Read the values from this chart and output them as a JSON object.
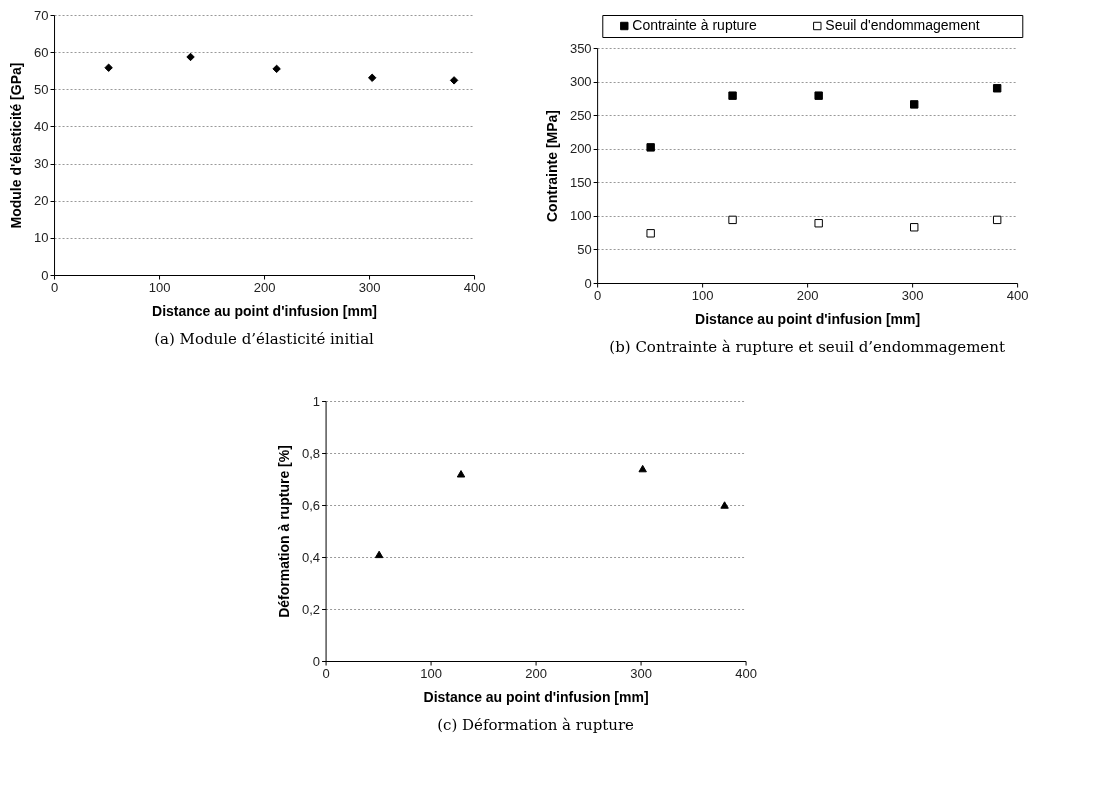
{
  "chart_data": [
    {
      "type": "scatter",
      "title": "(a) Module d’élasticité initial",
      "xlabel": "Distance au point d'infusion [mm]",
      "ylabel": "Module d'élasticité [GPa]",
      "x": [
        52,
        130,
        212,
        303,
        381
      ],
      "values": [
        55.8,
        58.7,
        55.5,
        53.1,
        52.4
      ],
      "color": "#000000",
      "marker": "diamond",
      "xlim": [
        0,
        400
      ],
      "xticks": [
        0,
        100,
        200,
        300,
        400
      ],
      "ylim": [
        0,
        70
      ],
      "yticks": [
        0,
        10,
        20,
        30,
        40,
        50,
        60,
        70
      ],
      "grid": "y"
    },
    {
      "type": "scatter",
      "title": "(b) Contrainte à rupture et seuil d’endommagement",
      "xlabel": "Distance au point d'infusion [mm]",
      "ylabel": "Contrainte [MPa]",
      "x": [
        51,
        129,
        211,
        302,
        381
      ],
      "series": [
        {
          "name": "Contrainte à rupture",
          "color": "#000000",
          "values": [
            202,
            279,
            279,
            266,
            290
          ]
        },
        {
          "name": "Seuil d'endommagement",
          "color": "#ffffff",
          "values": [
            74,
            94,
            89,
            83,
            94
          ]
        }
      ],
      "marker": "square",
      "xlim": [
        0,
        400
      ],
      "xticks": [
        0,
        100,
        200,
        300,
        400
      ],
      "ylim": [
        0,
        350
      ],
      "yticks": [
        0,
        50,
        100,
        150,
        200,
        250,
        300,
        350
      ],
      "grid": "y",
      "legend": "top"
    },
    {
      "type": "scatter",
      "title": "(c) Déformation à rupture",
      "xlabel": "Distance au point d'infusion [mm]",
      "ylabel": "Déformation à rupture [%]",
      "x": [
        51,
        129,
        302,
        380
      ],
      "values": [
        0.41,
        0.72,
        0.74,
        0.6
      ],
      "color": "#000000",
      "marker": "triangle",
      "xlim": [
        0,
        400
      ],
      "xticks": [
        0,
        100,
        200,
        300,
        400
      ],
      "ylim": [
        0,
        1
      ],
      "yticks": [
        0,
        {
          "value": 0.2,
          "label": "0,2"
        },
        {
          "value": 0.4,
          "label": "0,4"
        },
        {
          "value": 0.6,
          "label": "0,6"
        },
        {
          "value": 0.8,
          "label": "0,8"
        },
        1
      ],
      "grid": "y"
    }
  ]
}
